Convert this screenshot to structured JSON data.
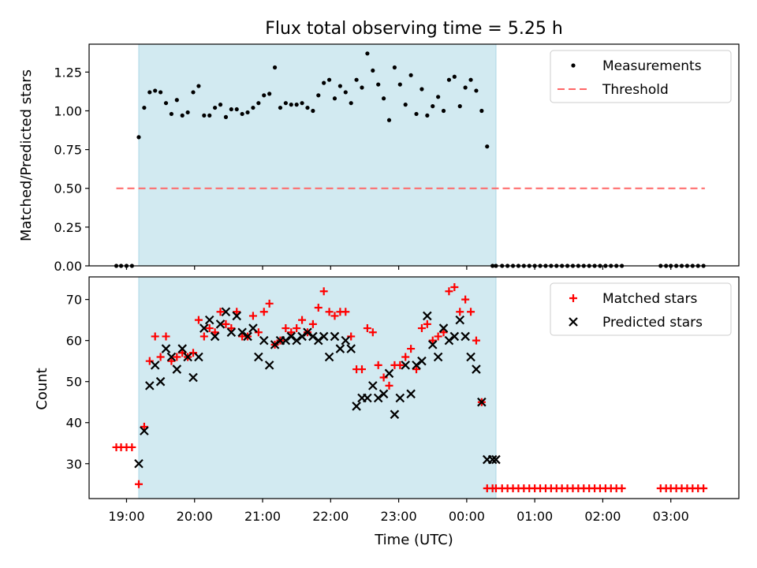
{
  "figure": {
    "title": "Flux total observing time = 5.25 h",
    "xlabel": "Time (UTC)",
    "xticks": [
      {
        "t": 19,
        "label": "19:00"
      },
      {
        "t": 20,
        "label": "20:00"
      },
      {
        "t": 21,
        "label": "21:00"
      },
      {
        "t": 22,
        "label": "22:00"
      },
      {
        "t": 23,
        "label": "23:00"
      },
      {
        "t": 24,
        "label": "00:00"
      },
      {
        "t": 25,
        "label": "01:00"
      },
      {
        "t": 26,
        "label": "02:00"
      },
      {
        "t": 27,
        "label": "03:00"
      }
    ],
    "xlim": [
      18.45,
      28.0
    ],
    "shaded_span": [
      19.18,
      24.43
    ],
    "colors": {
      "shade": "#add8e6",
      "matched": "#ff0000",
      "predicted": "#000000",
      "threshold": "#ff6666",
      "measure": "#000000"
    }
  },
  "chart_data": [
    {
      "type": "scatter",
      "ylabel": "Matched/Predicted stars",
      "ylim": [
        0,
        1.43
      ],
      "yticks": [
        "0.00",
        "0.25",
        "0.50",
        "0.75",
        "1.00",
        "1.25"
      ],
      "legend": {
        "position": "upper-right",
        "entries": [
          "Measurements",
          "Threshold"
        ]
      },
      "threshold": {
        "y": 0.5,
        "x": [
          18.85,
          27.5
        ]
      },
      "series": [
        {
          "name": "Measurements",
          "x": [
            18.85,
            18.92,
            19.0,
            19.08,
            19.18,
            19.26,
            19.34,
            19.42,
            19.5,
            19.58,
            19.66,
            19.74,
            19.82,
            19.9,
            19.98,
            20.06,
            20.14,
            20.22,
            20.3,
            20.38,
            20.46,
            20.54,
            20.62,
            20.7,
            20.78,
            20.86,
            20.94,
            21.02,
            21.1,
            21.18,
            21.26,
            21.34,
            21.42,
            21.5,
            21.58,
            21.66,
            21.74,
            21.82,
            21.9,
            21.98,
            22.06,
            22.14,
            22.22,
            22.3,
            22.38,
            22.46,
            22.54,
            22.62,
            22.7,
            22.78,
            22.86,
            22.94,
            23.02,
            23.1,
            23.18,
            23.26,
            23.34,
            23.42,
            23.5,
            23.58,
            23.66,
            23.74,
            23.82,
            23.9,
            23.98,
            24.06,
            24.14,
            24.22,
            24.3,
            24.38,
            24.43,
            24.52,
            24.6,
            24.68,
            24.76,
            24.84,
            24.92,
            25.0,
            25.08,
            25.16,
            25.24,
            25.32,
            25.4,
            25.48,
            25.56,
            25.64,
            25.72,
            25.8,
            25.88,
            25.96,
            26.04,
            26.12,
            26.2,
            26.28,
            26.85,
            26.93,
            27.0,
            27.08,
            27.16,
            27.24,
            27.32,
            27.4,
            27.48
          ],
          "y": [
            0,
            0,
            0,
            0,
            0.83,
            1.02,
            1.12,
            1.13,
            1.12,
            1.05,
            0.98,
            1.07,
            0.97,
            0.99,
            1.12,
            1.16,
            0.97,
            0.97,
            1.02,
            1.04,
            0.96,
            1.01,
            1.01,
            0.98,
            0.99,
            1.02,
            1.05,
            1.1,
            1.11,
            1.28,
            1.02,
            1.05,
            1.04,
            1.04,
            1.05,
            1.02,
            1.0,
            1.1,
            1.18,
            1.2,
            1.08,
            1.16,
            1.12,
            1.05,
            1.2,
            1.15,
            1.37,
            1.26,
            1.17,
            1.08,
            0.94,
            1.28,
            1.17,
            1.04,
            1.23,
            0.98,
            1.14,
            0.97,
            1.03,
            1.09,
            1.0,
            1.2,
            1.22,
            1.03,
            1.15,
            1.2,
            1.13,
            1.0,
            0.77,
            0,
            0,
            0,
            0,
            0,
            0,
            0,
            0,
            0,
            0,
            0,
            0,
            0,
            0,
            0,
            0,
            0,
            0,
            0,
            0,
            0,
            0,
            0,
            0,
            0,
            0,
            0,
            0,
            0,
            0,
            0,
            0,
            0,
            0
          ]
        }
      ]
    },
    {
      "type": "scatter",
      "ylabel": "Count",
      "ylim": [
        21.5,
        75.5
      ],
      "yticks": [
        "30",
        "40",
        "50",
        "60",
        "70"
      ],
      "legend": {
        "position": "upper-right",
        "entries": [
          "Matched stars",
          "Predicted stars"
        ]
      },
      "series": [
        {
          "name": "Matched stars",
          "marker": "plus",
          "x": [
            18.85,
            18.92,
            19.0,
            19.08,
            19.18,
            19.26,
            19.34,
            19.42,
            19.5,
            19.58,
            19.66,
            19.74,
            19.82,
            19.9,
            19.98,
            20.06,
            20.14,
            20.22,
            20.3,
            20.38,
            20.46,
            20.54,
            20.62,
            20.7,
            20.78,
            20.86,
            20.94,
            21.02,
            21.1,
            21.18,
            21.26,
            21.34,
            21.42,
            21.5,
            21.58,
            21.66,
            21.74,
            21.82,
            21.9,
            21.98,
            22.06,
            22.14,
            22.22,
            22.3,
            22.38,
            22.46,
            22.54,
            22.62,
            22.7,
            22.78,
            22.86,
            22.94,
            23.02,
            23.1,
            23.18,
            23.26,
            23.34,
            23.42,
            23.5,
            23.58,
            23.66,
            23.74,
            23.82,
            23.9,
            23.98,
            24.06,
            24.14,
            24.22,
            24.3,
            24.38,
            24.43,
            24.52,
            24.6,
            24.68,
            24.76,
            24.84,
            24.92,
            25.0,
            25.08,
            25.16,
            25.24,
            25.32,
            25.4,
            25.48,
            25.56,
            25.64,
            25.72,
            25.8,
            25.88,
            25.96,
            26.04,
            26.12,
            26.2,
            26.28,
            26.85,
            26.93,
            27.0,
            27.08,
            27.16,
            27.24,
            27.32,
            27.4,
            27.48
          ],
          "y": [
            34,
            34,
            34,
            34,
            25,
            39,
            55,
            61,
            56,
            61,
            55,
            56,
            57,
            56,
            57,
            65,
            61,
            63,
            62,
            67,
            64,
            63,
            67,
            61,
            61,
            66,
            62,
            67,
            69,
            59,
            60,
            63,
            62,
            63,
            65,
            62,
            64,
            68,
            72,
            67,
            66,
            67,
            67,
            61,
            53,
            53,
            63,
            62,
            54,
            51,
            49,
            54,
            54,
            56,
            58,
            53,
            63,
            64,
            60,
            61,
            62,
            72,
            73,
            67,
            70,
            67,
            60,
            45,
            24,
            24,
            24,
            24,
            24,
            24,
            24,
            24,
            24,
            24,
            24,
            24,
            24,
            24,
            24,
            24,
            24,
            24,
            24,
            24,
            24,
            24,
            24,
            24,
            24,
            24,
            24,
            24,
            24,
            24,
            24,
            24,
            24,
            24,
            24
          ]
        },
        {
          "name": "Predicted stars",
          "marker": "x",
          "x": [
            19.18,
            19.26,
            19.34,
            19.42,
            19.5,
            19.58,
            19.66,
            19.74,
            19.82,
            19.9,
            19.98,
            20.06,
            20.14,
            20.22,
            20.3,
            20.38,
            20.46,
            20.54,
            20.62,
            20.7,
            20.78,
            20.86,
            20.94,
            21.02,
            21.1,
            21.18,
            21.26,
            21.34,
            21.42,
            21.5,
            21.58,
            21.66,
            21.74,
            21.82,
            21.9,
            21.98,
            22.06,
            22.14,
            22.22,
            22.3,
            22.38,
            22.46,
            22.54,
            22.62,
            22.7,
            22.78,
            22.86,
            22.94,
            23.02,
            23.1,
            23.18,
            23.26,
            23.34,
            23.42,
            23.5,
            23.58,
            23.66,
            23.74,
            23.82,
            23.9,
            23.98,
            24.06,
            24.14,
            24.22,
            24.3,
            24.38,
            24.43
          ],
          "y": [
            30,
            38,
            49,
            54,
            50,
            58,
            56,
            53,
            58,
            56,
            51,
            56,
            63,
            65,
            61,
            64,
            67,
            62,
            66,
            62,
            61,
            63,
            56,
            60,
            54,
            59,
            60,
            60,
            61,
            60,
            61,
            62,
            61,
            60,
            61,
            56,
            61,
            58,
            60,
            58,
            44,
            46,
            46,
            49,
            46,
            47,
            52,
            42,
            46,
            54,
            47,
            54,
            55,
            66,
            59,
            56,
            63,
            60,
            61,
            65,
            61,
            56,
            53,
            45,
            31,
            31,
            31
          ]
        }
      ]
    }
  ]
}
